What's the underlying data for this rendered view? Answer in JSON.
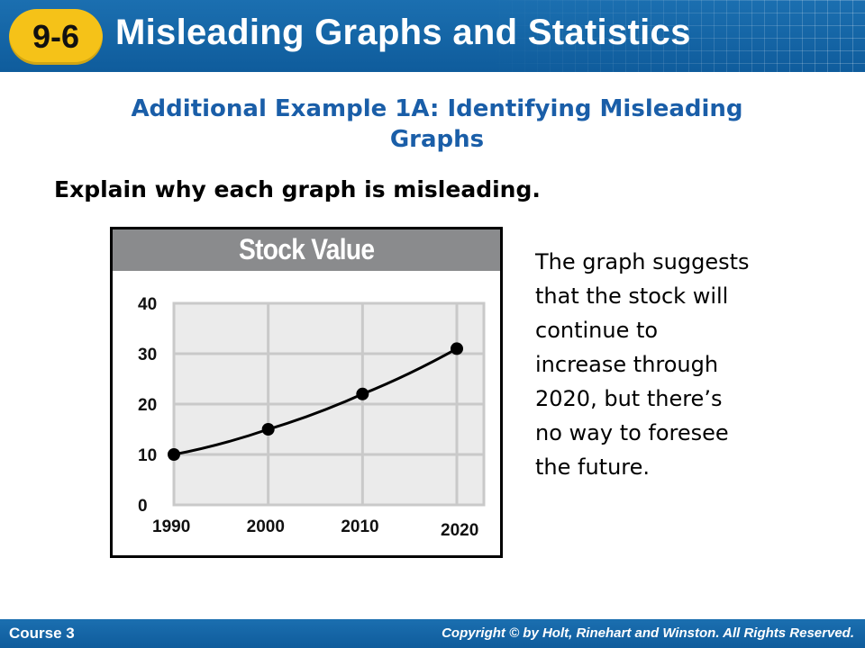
{
  "header": {
    "lesson_number": "9-6",
    "lesson_title": "Misleading Graphs and Statistics"
  },
  "example": {
    "heading_line1": "Additional Example 1A: Identifying Misleading",
    "heading_line2": "Graphs",
    "prompt": "Explain why each graph is misleading."
  },
  "explanation_lines": [
    "The graph suggests",
    "that the stock will",
    "continue to",
    "increase through",
    "2020, but there’s",
    "no way to foresee",
    "the future."
  ],
  "footer": {
    "course": "Course 3",
    "copyright": "Copyright © by Holt, Rinehart and Winston. All Rights Reserved."
  },
  "colors": {
    "header_blue": "#1565a8",
    "badge_yellow": "#f5c218",
    "heading_blue": "#1a5ea8",
    "chart_title_bar": "#8a8b8d",
    "plot_background": "#ebebeb"
  },
  "chart_data": {
    "type": "line",
    "title": "Stock Value",
    "xlabel": "",
    "ylabel": "",
    "x": [
      1990,
      2000,
      2010,
      2020
    ],
    "x_tick_labels": [
      "1990",
      "2000",
      "2010",
      "2020"
    ],
    "y_tick_labels": [
      "0",
      "10",
      "20",
      "30",
      "40"
    ],
    "xlim": [
      1990,
      2020
    ],
    "ylim": [
      0,
      40
    ],
    "series": [
      {
        "values": [
          10,
          15,
          22,
          31
        ]
      }
    ],
    "grid": true,
    "markers": "filled-circle",
    "line_color": "#000000"
  }
}
